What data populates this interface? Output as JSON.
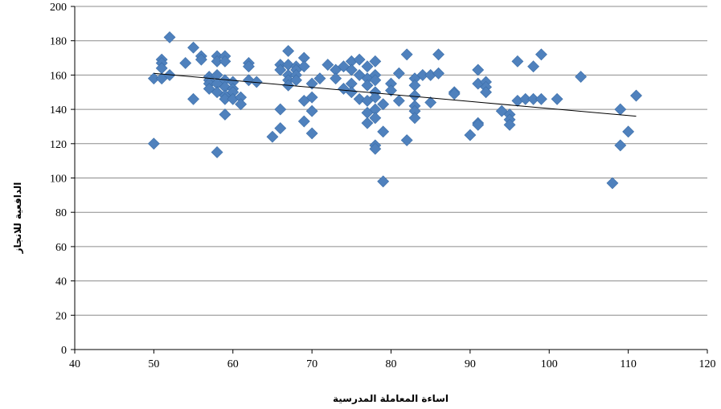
{
  "chart_data": {
    "type": "scatter",
    "xlabel": "اساءة المعاملة المدرسية",
    "ylabel": "الدافعية للانجاز",
    "xlim": [
      40,
      120
    ],
    "ylim": [
      0,
      200
    ],
    "x_ticks": [
      40,
      50,
      60,
      70,
      80,
      90,
      100,
      110,
      120
    ],
    "y_ticks": [
      0,
      20,
      40,
      60,
      80,
      100,
      120,
      140,
      160,
      180,
      200
    ],
    "grid": "horizontal",
    "marker": "diamond",
    "marker_color": "#4F81BD",
    "trendline": {
      "type": "linear",
      "x": [
        50,
        111
      ],
      "y": [
        161,
        136
      ],
      "color": "#000000"
    },
    "points": [
      [
        50,
        158
      ],
      [
        50,
        120
      ],
      [
        51,
        169
      ],
      [
        51,
        167
      ],
      [
        51,
        164
      ],
      [
        51,
        158
      ],
      [
        52,
        182
      ],
      [
        52,
        160
      ],
      [
        54,
        167
      ],
      [
        55,
        176
      ],
      [
        55,
        146
      ],
      [
        56,
        171
      ],
      [
        56,
        169
      ],
      [
        57,
        159
      ],
      [
        57,
        157
      ],
      [
        57,
        155
      ],
      [
        57,
        152
      ],
      [
        58,
        171
      ],
      [
        58,
        168
      ],
      [
        58,
        160
      ],
      [
        58,
        155
      ],
      [
        58,
        150
      ],
      [
        58,
        115
      ],
      [
        59,
        171
      ],
      [
        59,
        168
      ],
      [
        59,
        157
      ],
      [
        59,
        153
      ],
      [
        59,
        148
      ],
      [
        59,
        146
      ],
      [
        59,
        137
      ],
      [
        60,
        156
      ],
      [
        60,
        152
      ],
      [
        60,
        150
      ],
      [
        60,
        146
      ],
      [
        61,
        147
      ],
      [
        61,
        143
      ],
      [
        62,
        167
      ],
      [
        62,
        165
      ],
      [
        62,
        157
      ],
      [
        63,
        156
      ],
      [
        65,
        124
      ],
      [
        66,
        166
      ],
      [
        66,
        163
      ],
      [
        66,
        140
      ],
      [
        66,
        129
      ],
      [
        67,
        174
      ],
      [
        67,
        166
      ],
      [
        67,
        160
      ],
      [
        67,
        157
      ],
      [
        67,
        154
      ],
      [
        68,
        165
      ],
      [
        68,
        163
      ],
      [
        68,
        160
      ],
      [
        68,
        157
      ],
      [
        69,
        170
      ],
      [
        69,
        165
      ],
      [
        69,
        145
      ],
      [
        69,
        133
      ],
      [
        70,
        155
      ],
      [
        70,
        147
      ],
      [
        70,
        139
      ],
      [
        70,
        126
      ],
      [
        71,
        158
      ],
      [
        72,
        166
      ],
      [
        73,
        163
      ],
      [
        73,
        158
      ],
      [
        74,
        165
      ],
      [
        74,
        152
      ],
      [
        75,
        168
      ],
      [
        75,
        163
      ],
      [
        75,
        155
      ],
      [
        75,
        150
      ],
      [
        76,
        169
      ],
      [
        76,
        160
      ],
      [
        76,
        146
      ],
      [
        77,
        165
      ],
      [
        77,
        158
      ],
      [
        77,
        154
      ],
      [
        77,
        145
      ],
      [
        77,
        138
      ],
      [
        77,
        132
      ],
      [
        78,
        168
      ],
      [
        78,
        160
      ],
      [
        78,
        157
      ],
      [
        78,
        150
      ],
      [
        78,
        147
      ],
      [
        78,
        140
      ],
      [
        78,
        135
      ],
      [
        78,
        119
      ],
      [
        78,
        117
      ],
      [
        79,
        143
      ],
      [
        79,
        127
      ],
      [
        79,
        98
      ],
      [
        80,
        155
      ],
      [
        80,
        151
      ],
      [
        81,
        161
      ],
      [
        81,
        145
      ],
      [
        82,
        172
      ],
      [
        82,
        122
      ],
      [
        83,
        158
      ],
      [
        83,
        154
      ],
      [
        83,
        148
      ],
      [
        83,
        142
      ],
      [
        83,
        139
      ],
      [
        83,
        135
      ],
      [
        84,
        160
      ],
      [
        85,
        160
      ],
      [
        85,
        144
      ],
      [
        86,
        172
      ],
      [
        86,
        161
      ],
      [
        88,
        150
      ],
      [
        88,
        149
      ],
      [
        90,
        125
      ],
      [
        91,
        163
      ],
      [
        91,
        155
      ],
      [
        91,
        132
      ],
      [
        91,
        131
      ],
      [
        92,
        156
      ],
      [
        92,
        153
      ],
      [
        92,
        150
      ],
      [
        94,
        139
      ],
      [
        95,
        137
      ],
      [
        95,
        134
      ],
      [
        95,
        131
      ],
      [
        96,
        168
      ],
      [
        96,
        145
      ],
      [
        97,
        146
      ],
      [
        98,
        165
      ],
      [
        98,
        146
      ],
      [
        99,
        172
      ],
      [
        99,
        146
      ],
      [
        101,
        146
      ],
      [
        104,
        159
      ],
      [
        108,
        97
      ],
      [
        109,
        140
      ],
      [
        109,
        119
      ],
      [
        110,
        127
      ],
      [
        111,
        148
      ]
    ]
  }
}
